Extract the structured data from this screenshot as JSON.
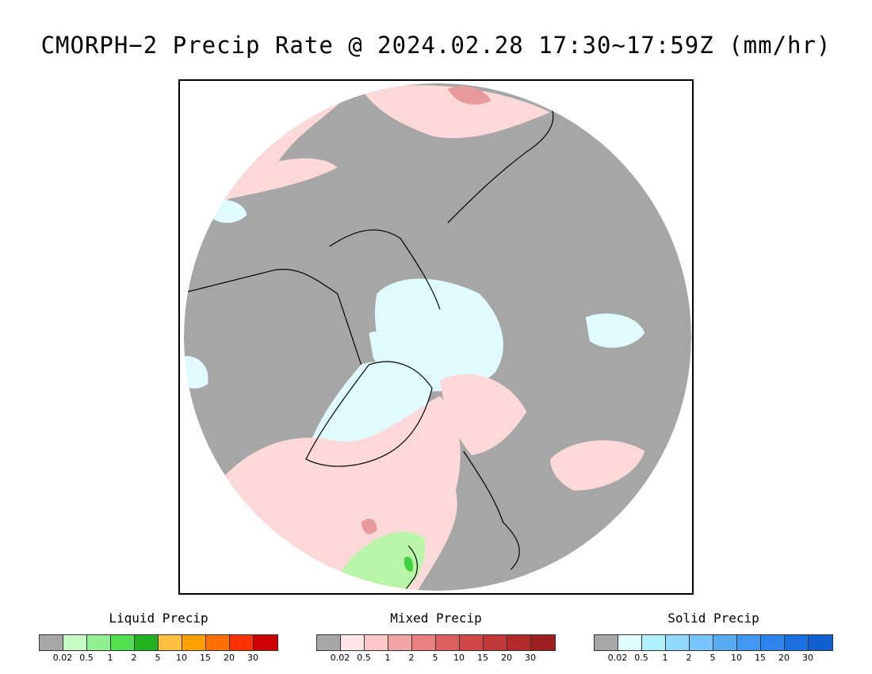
{
  "title": "CMORPH−2 Precip Rate @ 2024.02.28 17:30∼17:59Z (mm/hr)",
  "map": {
    "projection": "polar-stereographic-north",
    "colors": {
      "no_precip": "#a6a6a6",
      "mixed_light": "#fcd8d8",
      "mixed_mid": "#e89a9a",
      "solid_light": "#dffbff",
      "liquid_light": "#b8f5a8",
      "liquid_mid": "#3fd43f",
      "coastline": "#000000"
    }
  },
  "legends": [
    {
      "title": "Liquid Precip",
      "colors": [
        "#a6a6a6",
        "#c4fcc4",
        "#90f090",
        "#50e050",
        "#20b020",
        "#ffbf40",
        "#ff9f00",
        "#ff7000",
        "#ff3300",
        "#cc0000"
      ],
      "ticks": [
        "0.02",
        "0.5",
        "1",
        "2",
        "5",
        "10",
        "15",
        "20",
        "30"
      ]
    },
    {
      "title": "Mixed Precip",
      "colors": [
        "#a6a6a6",
        "#ffe6e6",
        "#ffc8c8",
        "#f2a4a4",
        "#e88080",
        "#dc6060",
        "#d04848",
        "#c03838",
        "#b02a2a",
        "#9c2020"
      ],
      "ticks": [
        "0.02",
        "0.5",
        "1",
        "2",
        "5",
        "10",
        "15",
        "20",
        "30"
      ]
    },
    {
      "title": "Solid Precip",
      "colors": [
        "#a6a6a6",
        "#e0ffff",
        "#b0f0ff",
        "#90d8ff",
        "#78c4ff",
        "#58acf4",
        "#4098f0",
        "#2c84ec",
        "#1c70e0",
        "#1060d0"
      ],
      "ticks": [
        "0.02",
        "0.5",
        "1",
        "2",
        "5",
        "10",
        "15",
        "20",
        "30"
      ]
    }
  ]
}
